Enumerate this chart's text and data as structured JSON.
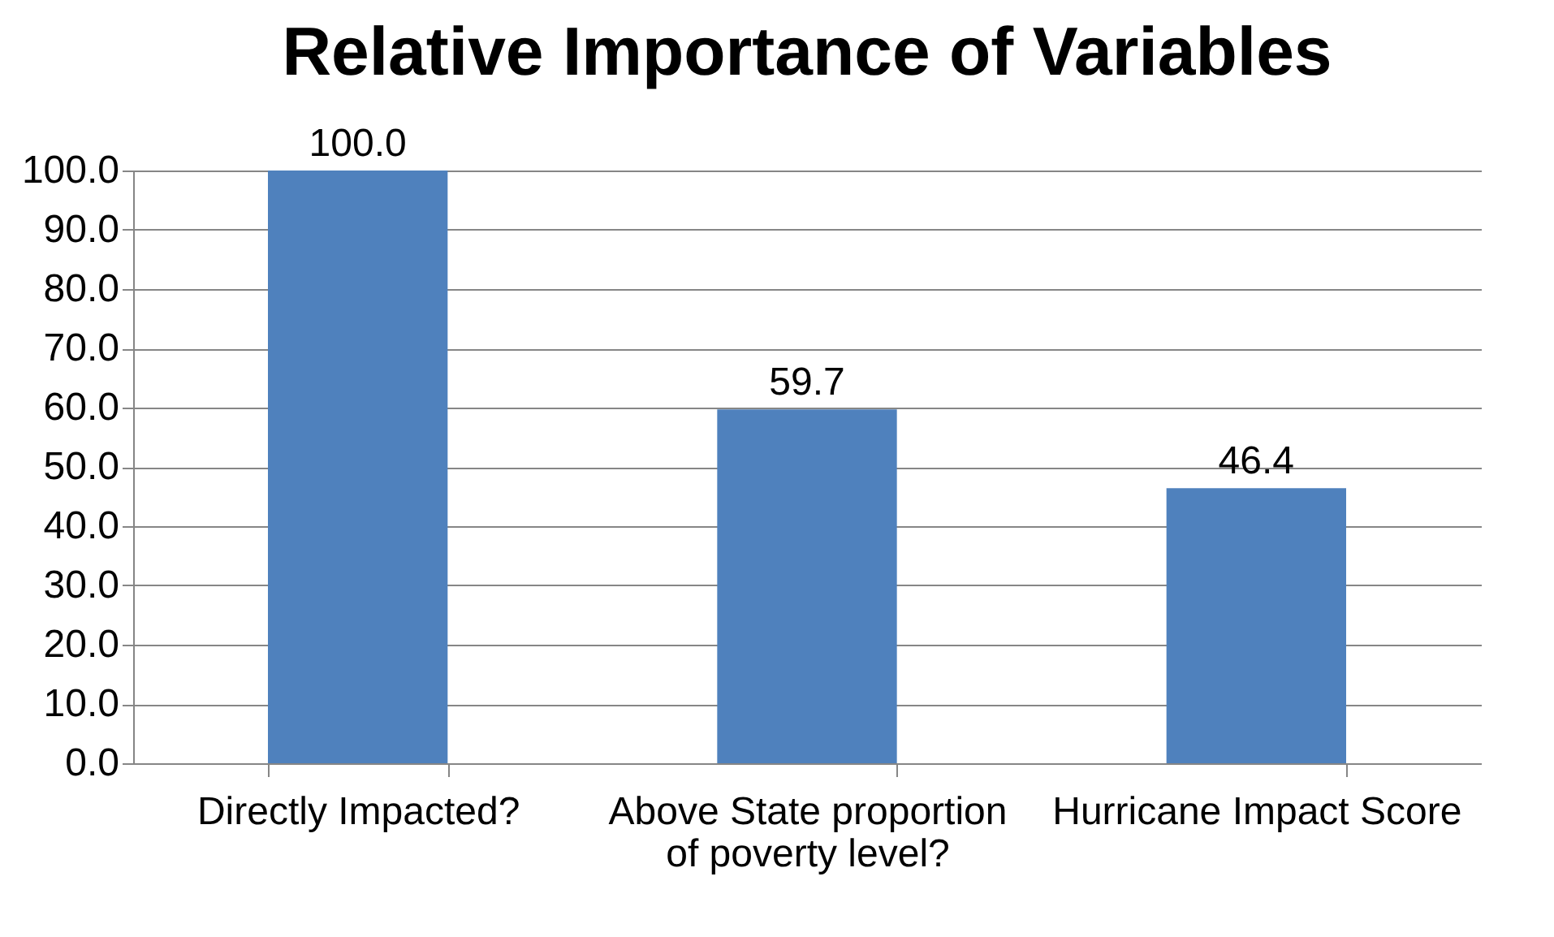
{
  "chart_data": {
    "type": "bar",
    "title": "Relative Importance of Variables",
    "categories": [
      "Directly Impacted?",
      "Above State proportion of poverty level?",
      "Hurricane Impact Score"
    ],
    "values": [
      100.0,
      59.7,
      46.4
    ],
    "color": "#4f81bd",
    "value_labels": [
      "100.0",
      "59.7",
      "46.4"
    ],
    "ylim": [
      0,
      100
    ],
    "yticks": [
      {
        "value": 0,
        "label": "0.0"
      },
      {
        "value": 10,
        "label": "10.0"
      },
      {
        "value": 20,
        "label": "20.0"
      },
      {
        "value": 30,
        "label": "30.0"
      },
      {
        "value": 40,
        "label": "40.0"
      },
      {
        "value": 50,
        "label": "50.0"
      },
      {
        "value": 60,
        "label": "60.0"
      },
      {
        "value": 70,
        "label": "70.0"
      },
      {
        "value": 80,
        "label": "80.0"
      },
      {
        "value": 90,
        "label": "90.0"
      },
      {
        "value": 100,
        "label": "100.0"
      }
    ],
    "grid": "y"
  }
}
